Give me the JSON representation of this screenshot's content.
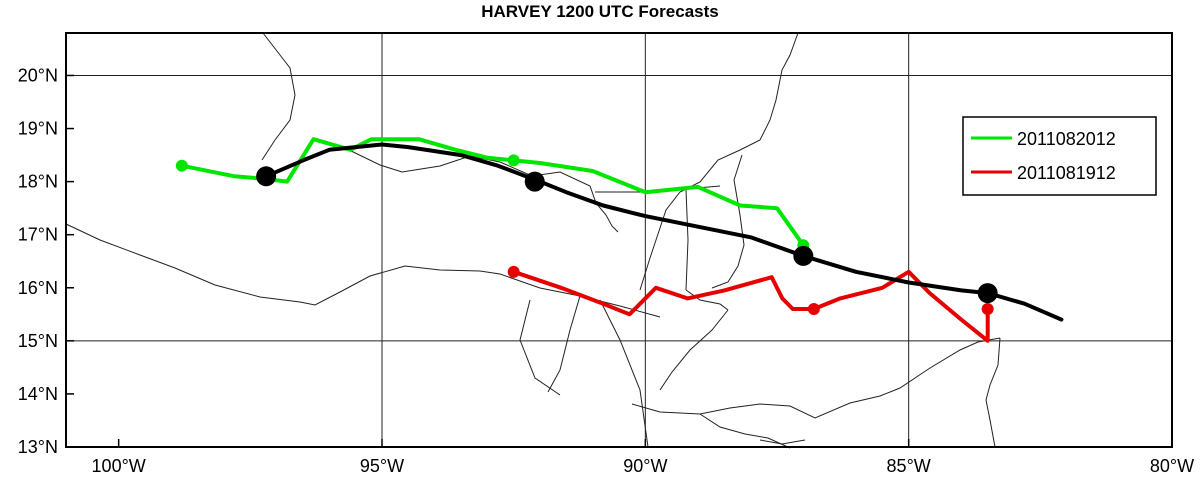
{
  "title": "HARVEY 1200 UTC Forecasts",
  "map": {
    "lon_range": [
      -101,
      -80
    ],
    "lat_range": [
      13,
      20.8
    ],
    "x_ticks": [
      {
        "lon": -100,
        "label": "100°W"
      },
      {
        "lon": -95,
        "label": "95°W"
      },
      {
        "lon": -90,
        "label": "90°W"
      },
      {
        "lon": -85,
        "label": "85°W"
      },
      {
        "lon": -80,
        "label": "80°W"
      }
    ],
    "y_ticks": [
      {
        "lat": 13,
        "label": "13°N"
      },
      {
        "lat": 14,
        "label": "14°N"
      },
      {
        "lat": 15,
        "label": "15°N"
      },
      {
        "lat": 16,
        "label": "16°N"
      },
      {
        "lat": 17,
        "label": "17°N"
      },
      {
        "lat": 18,
        "label": "18°N"
      },
      {
        "lat": 19,
        "label": "19°N"
      },
      {
        "lat": 20,
        "label": "20°N"
      }
    ],
    "graticule": {
      "lons": [
        -95,
        -90,
        -85
      ],
      "lats": [
        15,
        20
      ]
    }
  },
  "legend": {
    "placement": "right",
    "items": [
      {
        "label": "2011082012",
        "color": "#00e600"
      },
      {
        "label": "2011081912",
        "color": "#e60000"
      }
    ]
  },
  "tracks": [
    {
      "name": "best-track",
      "color": "#000000",
      "points": [
        [
          -97.2,
          18.1
        ],
        [
          -96.5,
          18.4
        ],
        [
          -96.0,
          18.6
        ],
        [
          -95.0,
          18.7
        ],
        [
          -94.5,
          18.65
        ],
        [
          -93.5,
          18.5
        ],
        [
          -92.8,
          18.3
        ],
        [
          -92.0,
          18.0
        ],
        [
          -91.5,
          17.8
        ],
        [
          -90.8,
          17.55
        ],
        [
          -90.0,
          17.35
        ],
        [
          -89.0,
          17.15
        ],
        [
          -88.0,
          16.95
        ],
        [
          -87.0,
          16.6
        ],
        [
          -86.0,
          16.3
        ],
        [
          -85.0,
          16.1
        ],
        [
          -84.0,
          15.95
        ],
        [
          -83.5,
          15.9
        ],
        [
          -82.8,
          15.7
        ],
        [
          -82.1,
          15.4
        ]
      ],
      "markers": [
        [
          -97.2,
          18.1
        ],
        [
          -92.1,
          18.0
        ],
        [
          -87.0,
          16.6
        ],
        [
          -83.5,
          15.9
        ]
      ]
    },
    {
      "name": "2011082012",
      "color": "#00e600",
      "points": [
        [
          -98.8,
          18.3
        ],
        [
          -97.8,
          18.1
        ],
        [
          -97.2,
          18.05
        ],
        [
          -96.8,
          18.0
        ],
        [
          -96.3,
          18.8
        ],
        [
          -95.6,
          18.6
        ],
        [
          -95.2,
          18.8
        ],
        [
          -94.3,
          18.8
        ],
        [
          -93.6,
          18.6
        ],
        [
          -93.0,
          18.45
        ],
        [
          -92.5,
          18.4
        ],
        [
          -92.0,
          18.35
        ],
        [
          -91.0,
          18.2
        ],
        [
          -90.0,
          17.8
        ],
        [
          -89.0,
          17.9
        ],
        [
          -88.2,
          17.55
        ],
        [
          -87.5,
          17.5
        ],
        [
          -87.0,
          16.8
        ]
      ],
      "markers": [
        [
          -98.8,
          18.3
        ],
        [
          -92.5,
          18.4
        ],
        [
          -87.0,
          16.8
        ]
      ]
    },
    {
      "name": "2011081912",
      "color": "#e60000",
      "points": [
        [
          -92.5,
          16.3
        ],
        [
          -91.6,
          16.0
        ],
        [
          -90.8,
          15.7
        ],
        [
          -90.3,
          15.5
        ],
        [
          -89.8,
          16.0
        ],
        [
          -89.2,
          15.8
        ],
        [
          -88.5,
          15.95
        ],
        [
          -87.6,
          16.2
        ],
        [
          -87.4,
          15.8
        ],
        [
          -87.2,
          15.6
        ],
        [
          -86.8,
          15.6
        ],
        [
          -86.3,
          15.8
        ],
        [
          -85.5,
          16.0
        ],
        [
          -85.0,
          16.3
        ],
        [
          -84.6,
          15.9
        ],
        [
          -84.0,
          15.4
        ],
        [
          -83.5,
          15.0
        ],
        [
          -83.5,
          15.6
        ]
      ],
      "markers": [
        [
          -92.5,
          16.3
        ],
        [
          -86.8,
          15.6
        ],
        [
          -83.5,
          15.6
        ]
      ]
    }
  ]
}
